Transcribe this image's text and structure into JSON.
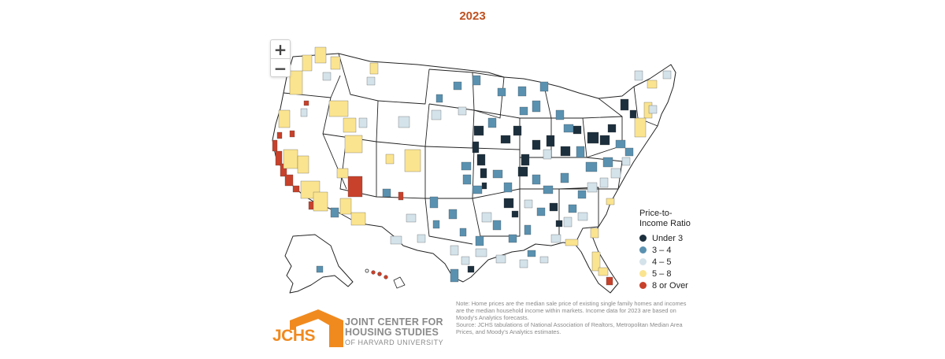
{
  "title": "2023",
  "colors": {
    "under_3": "#1c2f3d",
    "3_4": "#5a91b0",
    "4_5": "#d4e2ea",
    "5_8": "#fbe48f",
    "8_over": "#c8412a",
    "no_data": "#ffffff",
    "border": "#222222",
    "accent": "#f08a1f"
  },
  "zoom": {
    "in_label": "+",
    "out_label": "−"
  },
  "legend": {
    "title": "Price-to-\nIncome Ratio",
    "items": [
      {
        "label": "Under 3",
        "color": "#1c2f3d"
      },
      {
        "label": "3 – 4",
        "color": "#5a91b0"
      },
      {
        "label": "4 – 5",
        "color": "#d4e2ea"
      },
      {
        "label": "5 – 8",
        "color": "#fbe48f"
      },
      {
        "label": "8 or Over",
        "color": "#c8412a"
      }
    ]
  },
  "note": "Note: Home prices are the median sale price of existing single family homes and incomes are the median household income within markets. Income data for 2023 are based on Moody's Analytics forecasts.",
  "source": "Source: JCHS tabulations of National Association of Realtors, Metropolitan Median Area Prices, and Moody's Analytics estimates.",
  "logo": {
    "abbr": "JCHS",
    "line1": "JOINT CENTER FOR",
    "line2": "HOUSING STUDIES",
    "line3": "OF HARVARD UNIVERSITY"
  }
}
